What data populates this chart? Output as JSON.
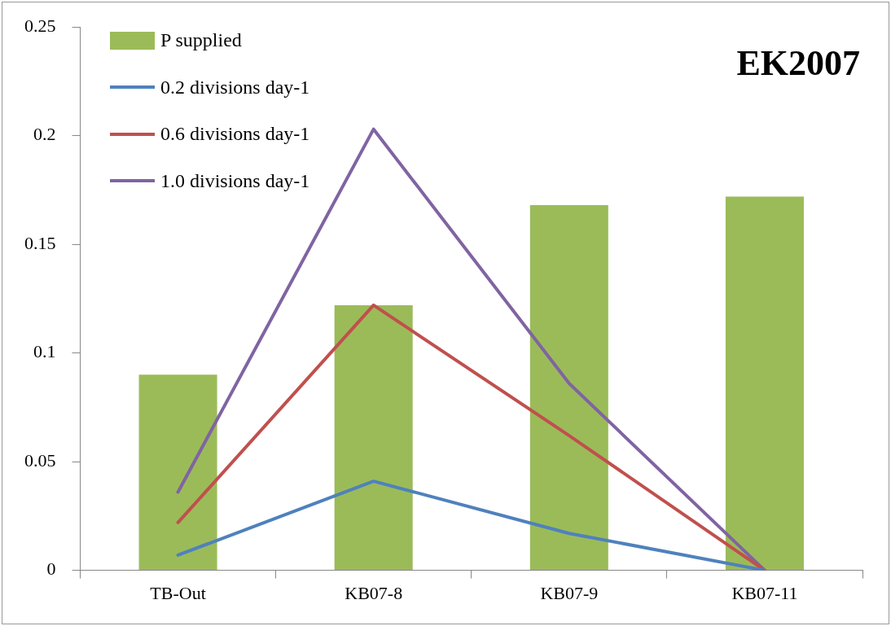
{
  "chart_data": {
    "type": "bar",
    "categories": [
      "TB-Out",
      "KB07-8",
      "KB07-9",
      "KB07-11"
    ],
    "series": [
      {
        "name": "P supplied",
        "color": "#9bbb59",
        "values": [
          0.09,
          0.122,
          0.168,
          0.172
        ]
      },
      {
        "name": "0.2 divisions day-1",
        "type": "line",
        "color": "#4f81bd",
        "values": [
          0.007,
          0.041,
          0.017,
          0
        ]
      },
      {
        "name": "0.6 divisions day-1",
        "type": "line",
        "color": "#c0504d",
        "values": [
          0.022,
          0.122,
          0.062,
          0
        ]
      },
      {
        "name": "1.0 divisions day-1",
        "type": "line",
        "color": "#8064a2",
        "values": [
          0.036,
          0.203,
          0.086,
          0
        ]
      }
    ],
    "ylim": [
      0,
      0.25
    ],
    "yticks": [
      0,
      0.05,
      0.1,
      0.15,
      0.2,
      0.25
    ],
    "grid": false,
    "legend": "top left",
    "marker": "none",
    "line_style": "solid",
    "annotations": [
      "EK2007"
    ]
  }
}
